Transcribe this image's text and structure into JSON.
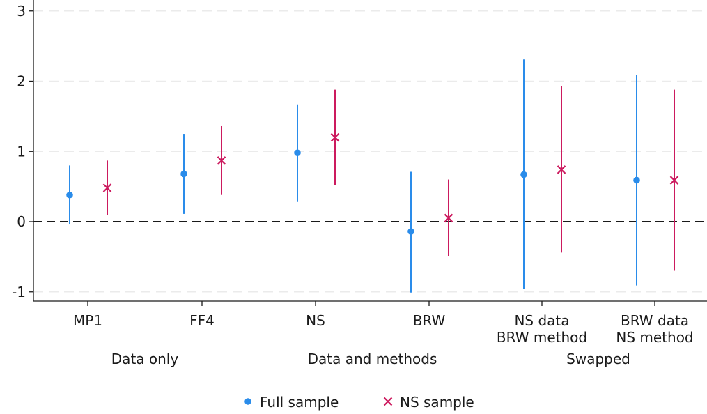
{
  "chart_data": {
    "type": "scatter",
    "subtype": "point-with-confidence-interval",
    "ylim": [
      -1.1,
      3.1
    ],
    "yticks": [
      -1,
      0,
      1,
      2,
      3
    ],
    "ytick_labels": [
      "-1",
      "0",
      "1",
      "2",
      "3"
    ],
    "grid": true,
    "reference_line": {
      "y": 0,
      "style": "dashed"
    },
    "categories": [
      {
        "label_lines": [
          "MP1"
        ]
      },
      {
        "label_lines": [
          "FF4"
        ]
      },
      {
        "label_lines": [
          "NS"
        ]
      },
      {
        "label_lines": [
          "BRW"
        ]
      },
      {
        "label_lines": [
          "NS data",
          "BRW method"
        ]
      },
      {
        "label_lines": [
          "BRW data",
          "NS method"
        ]
      }
    ],
    "groups": [
      {
        "label": "Data only",
        "categories": [
          0,
          1
        ]
      },
      {
        "label": "Data and methods",
        "categories": [
          2,
          3
        ]
      },
      {
        "label": "Swapped",
        "categories": [
          4,
          5
        ]
      }
    ],
    "series": [
      {
        "name": "Full sample",
        "marker": "dot",
        "color": "#2a8cea",
        "values": [
          0.38,
          0.68,
          0.98,
          -0.14,
          0.67,
          0.59
        ],
        "lower": [
          -0.04,
          0.11,
          0.28,
          -1.01,
          -0.96,
          -0.91
        ],
        "upper": [
          0.8,
          1.25,
          1.67,
          0.71,
          2.31,
          2.09
        ]
      },
      {
        "name": "NS sample",
        "marker": "x",
        "color": "#cc1a5e",
        "values": [
          0.48,
          0.87,
          1.2,
          0.05,
          0.74,
          0.59
        ],
        "lower": [
          0.09,
          0.38,
          0.52,
          -0.49,
          -0.44,
          -0.7
        ],
        "upper": [
          0.87,
          1.36,
          1.88,
          0.6,
          1.93,
          1.88
        ]
      }
    ],
    "legend": {
      "position": "bottom"
    }
  }
}
